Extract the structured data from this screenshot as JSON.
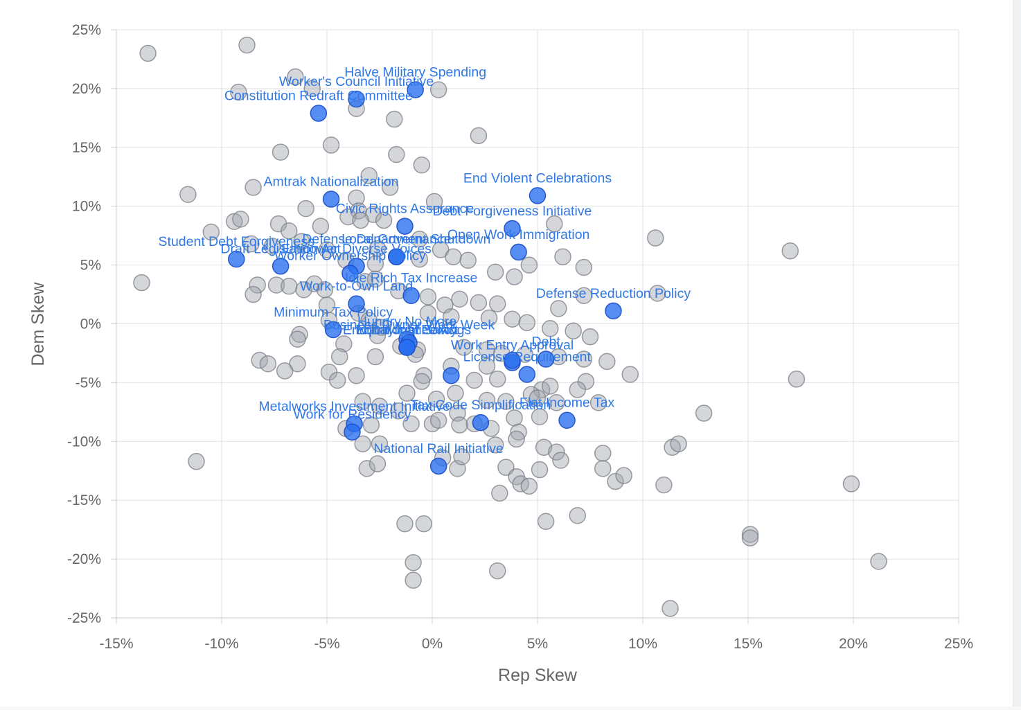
{
  "chart_data": {
    "type": "scatter",
    "xlabel": "Rep Skew",
    "ylabel": "Dem Skew",
    "xlim": [
      -15,
      25
    ],
    "ylim": [
      -25,
      25
    ],
    "x_tick_values": [
      -15,
      -10,
      -5,
      0,
      5,
      10,
      15,
      20,
      25
    ],
    "y_tick_values": [
      25,
      20,
      15,
      10,
      5,
      0,
      -5,
      -10,
      -15,
      -20,
      -25
    ],
    "x_ticks": [
      "-15%",
      "-10%",
      "-5%",
      "0%",
      "5%",
      "10%",
      "15%",
      "20%",
      "25%"
    ],
    "y_ticks": [
      "25%",
      "20%",
      "15%",
      "10%",
      "5%",
      "0%",
      "-5%",
      "-10%",
      "-15%",
      "-20%",
      "-25%"
    ],
    "grid": true,
    "colors": {
      "highlight": "#2f78e6",
      "background_point": "#a0a4ac"
    },
    "highlighted": [
      {
        "label": "Halve Military Spending",
        "x": -0.8,
        "y": 19.9
      },
      {
        "label": "Worker's Council Initiative",
        "x": -3.6,
        "y": 19.1
      },
      {
        "label": "Constitution Redraft Committee",
        "x": -5.4,
        "y": 17.9
      },
      {
        "label": "Amtrak Nationalization",
        "x": -4.8,
        "y": 10.6
      },
      {
        "label": "End Violent Celebrations",
        "x": 5.0,
        "y": 10.9
      },
      {
        "label": "Civic Rights Assurance",
        "x": -1.3,
        "y": 8.3
      },
      {
        "label": "Debt Forgiveness Initiative",
        "x": 3.8,
        "y": 8.1
      },
      {
        "label": "Open Work Immigration",
        "x": 4.1,
        "y": 6.1
      },
      {
        "label": "Defense Department Shutdown",
        "x": -1.7,
        "y": 5.7
      },
      {
        "label": "Student Debt Forgiveness",
        "x": -9.3,
        "y": 5.5
      },
      {
        "label": "Draft Legislation Act",
        "x": -7.2,
        "y": 4.9
      },
      {
        "label": "Empower Diverse Voices",
        "x": -3.6,
        "y": 4.9
      },
      {
        "label": "Local Governance",
        "x": -1.7,
        "y": 5.7
      },
      {
        "label": "Worker Ownership Policy",
        "x": -3.9,
        "y": 4.3
      },
      {
        "label": "Work-to-Own Land",
        "x": -3.6,
        "y": 1.7
      },
      {
        "label": "Defense Reduction Policy",
        "x": 8.6,
        "y": 1.1
      },
      {
        "label": "Idle Rich Tax Increase",
        "x": -1.0,
        "y": 2.4
      },
      {
        "label": "Minimum Tax Policy",
        "x": -4.7,
        "y": -0.5
      },
      {
        "label": "Hungry No More",
        "x": -1.2,
        "y": -1.3
      },
      {
        "label": "Business Owner Work Week",
        "x": -1.1,
        "y": -1.6
      },
      {
        "label": "Equal Justice Act",
        "x": -1.2,
        "y": -2.0
      },
      {
        "label": "Nutritional Policy",
        "x": -1.2,
        "y": -2.0
      },
      {
        "label": "Work Entry Approval",
        "x": 3.8,
        "y": -3.3
      },
      {
        "label": "Debt",
        "x": 5.4,
        "y": -3.0
      },
      {
        "label": "End Daylight Savings",
        "x": -1.2,
        "y": -2.0
      },
      {
        "label": "License Requirement",
        "x": 4.5,
        "y": -4.3
      },
      {
        "label": "Tax Code Simplification",
        "x": 2.3,
        "y": -8.4
      },
      {
        "label": "Metalworks Investment Initiative",
        "x": -3.7,
        "y": -8.5
      },
      {
        "label": "Work for Residency",
        "x": -3.8,
        "y": -9.2
      },
      {
        "label": "Flat Income Tax",
        "x": 6.4,
        "y": -8.2
      },
      {
        "label": "National Rail Initiative",
        "x": 0.3,
        "y": -12.1
      },
      {
        "label": "",
        "x": 0.9,
        "y": -4.4
      },
      {
        "label": "",
        "x": 3.8,
        "y": -3.1
      }
    ],
    "points": [
      [
        -13.5,
        23.0
      ],
      [
        -8.8,
        23.7
      ],
      [
        -9.2,
        19.7
      ],
      [
        -6.5,
        21.0
      ],
      [
        -5.7,
        20.0
      ],
      [
        0.3,
        19.9
      ],
      [
        -3.6,
        18.3
      ],
      [
        -1.8,
        17.4
      ],
      [
        2.2,
        16.0
      ],
      [
        -7.2,
        14.6
      ],
      [
        -4.8,
        15.2
      ],
      [
        -1.7,
        14.4
      ],
      [
        -0.5,
        13.5
      ],
      [
        -11.6,
        11.0
      ],
      [
        -8.5,
        11.6
      ],
      [
        -3.0,
        12.6
      ],
      [
        -2.0,
        11.6
      ],
      [
        -3.6,
        10.7
      ],
      [
        0.1,
        10.4
      ],
      [
        -6.0,
        9.8
      ],
      [
        -3.5,
        9.6
      ],
      [
        -2.8,
        9.3
      ],
      [
        -9.4,
        8.7
      ],
      [
        -9.1,
        8.9
      ],
      [
        -7.3,
        8.5
      ],
      [
        -5.3,
        8.3
      ],
      [
        -4.0,
        9.1
      ],
      [
        -2.3,
        8.8
      ],
      [
        -10.5,
        7.8
      ],
      [
        -6.8,
        7.9
      ],
      [
        -3.4,
        8.8
      ],
      [
        5.8,
        8.5
      ],
      [
        -8.6,
        6.8
      ],
      [
        -7.6,
        6.6
      ],
      [
        -6.2,
        7.0
      ],
      [
        -5.0,
        6.3
      ],
      [
        -2.6,
        6.4
      ],
      [
        -0.6,
        7.2
      ],
      [
        0.4,
        6.3
      ],
      [
        1.0,
        5.7
      ],
      [
        1.7,
        5.4
      ],
      [
        -4.1,
        5.4
      ],
      [
        -2.7,
        5.1
      ],
      [
        -0.6,
        5.5
      ],
      [
        3.0,
        4.4
      ],
      [
        3.9,
        4.0
      ],
      [
        4.6,
        5.0
      ],
      [
        6.2,
        5.7
      ],
      [
        7.2,
        4.8
      ],
      [
        10.6,
        7.3
      ],
      [
        17.0,
        6.2
      ],
      [
        -13.8,
        3.5
      ],
      [
        -8.3,
        3.3
      ],
      [
        -7.4,
        3.3
      ],
      [
        -6.8,
        3.2
      ],
      [
        -5.6,
        3.4
      ],
      [
        -5.1,
        2.9
      ],
      [
        -3.2,
        3.6
      ],
      [
        -2.7,
        3.8
      ],
      [
        -1.6,
        2.8
      ],
      [
        -0.2,
        2.3
      ],
      [
        0.6,
        1.6
      ],
      [
        1.3,
        2.1
      ],
      [
        2.2,
        1.8
      ],
      [
        3.1,
        1.7
      ],
      [
        6.0,
        1.3
      ],
      [
        7.2,
        2.4
      ],
      [
        10.7,
        2.6
      ],
      [
        -8.5,
        2.5
      ],
      [
        -6.1,
        2.9
      ],
      [
        -4.9,
        0.3
      ],
      [
        -5.0,
        1.6
      ],
      [
        -3.5,
        0.9
      ],
      [
        -3.0,
        0.3
      ],
      [
        -2.4,
        -0.3
      ],
      [
        -0.2,
        0.9
      ],
      [
        0.9,
        0.6
      ],
      [
        2.7,
        0.5
      ],
      [
        3.8,
        0.4
      ],
      [
        4.5,
        0.1
      ],
      [
        5.6,
        -0.4
      ],
      [
        6.7,
        -0.6
      ],
      [
        7.5,
        -1.1
      ],
      [
        -6.3,
        -0.9
      ],
      [
        -6.4,
        -1.3
      ],
      [
        -4.2,
        -1.7
      ],
      [
        -2.6,
        -1.0
      ],
      [
        -1.5,
        -1.9
      ],
      [
        -0.7,
        -2.2
      ],
      [
        1.5,
        -2.0
      ],
      [
        2.6,
        -2.2
      ],
      [
        3.3,
        -2.5
      ],
      [
        4.4,
        -2.6
      ],
      [
        6.0,
        -2.8
      ],
      [
        7.2,
        -3.0
      ],
      [
        8.3,
        -3.2
      ],
      [
        -8.2,
        -3.1
      ],
      [
        -7.8,
        -3.4
      ],
      [
        -6.4,
        -3.4
      ],
      [
        -4.4,
        -2.8
      ],
      [
        -2.7,
        -2.8
      ],
      [
        -0.8,
        -2.6
      ],
      [
        0.9,
        -3.6
      ],
      [
        2.6,
        -3.6
      ],
      [
        -7.0,
        -4.0
      ],
      [
        -4.9,
        -4.1
      ],
      [
        -3.6,
        -4.4
      ],
      [
        -4.5,
        -4.8
      ],
      [
        -0.4,
        -4.4
      ],
      [
        -0.5,
        -4.9
      ],
      [
        2.0,
        -4.8
      ],
      [
        3.1,
        -4.7
      ],
      [
        5.2,
        -5.6
      ],
      [
        5.6,
        -5.3
      ],
      [
        7.3,
        -4.9
      ],
      [
        9.4,
        -4.3
      ],
      [
        17.3,
        -4.7
      ],
      [
        -1.2,
        -5.9
      ],
      [
        0.2,
        -6.4
      ],
      [
        1.1,
        -5.9
      ],
      [
        2.6,
        -6.5
      ],
      [
        3.5,
        -6.6
      ],
      [
        4.7,
        -6.0
      ],
      [
        5.0,
        -6.3
      ],
      [
        5.9,
        -6.7
      ],
      [
        6.9,
        -5.6
      ],
      [
        7.9,
        -6.7
      ],
      [
        12.9,
        -7.6
      ],
      [
        -3.3,
        -6.6
      ],
      [
        -2.5,
        -7.0
      ],
      [
        -1.6,
        -7.4
      ],
      [
        -1.0,
        -8.5
      ],
      [
        0.0,
        -8.5
      ],
      [
        0.3,
        -8.2
      ],
      [
        1.2,
        -7.6
      ],
      [
        1.3,
        -8.6
      ],
      [
        2.0,
        -8.5
      ],
      [
        2.8,
        -8.9
      ],
      [
        3.9,
        -8.0
      ],
      [
        4.1,
        -9.2
      ],
      [
        5.1,
        -7.9
      ],
      [
        -4.1,
        -8.9
      ],
      [
        -2.9,
        -8.6
      ],
      [
        -3.3,
        -10.2
      ],
      [
        -2.5,
        -10.2
      ],
      [
        3.0,
        -10.3
      ],
      [
        4.0,
        -9.8
      ],
      [
        5.3,
        -10.5
      ],
      [
        5.9,
        -10.9
      ],
      [
        6.1,
        -11.6
      ],
      [
        8.1,
        -11.0
      ],
      [
        11.4,
        -10.5
      ],
      [
        11.7,
        -10.2
      ],
      [
        -11.2,
        -11.7
      ],
      [
        0.5,
        -11.4
      ],
      [
        1.2,
        -12.3
      ],
      [
        1.4,
        -11.3
      ],
      [
        -3.1,
        -12.3
      ],
      [
        -2.6,
        -11.9
      ],
      [
        3.5,
        -12.2
      ],
      [
        4.0,
        -13.0
      ],
      [
        4.2,
        -13.6
      ],
      [
        4.6,
        -13.8
      ],
      [
        5.1,
        -12.4
      ],
      [
        8.1,
        -12.3
      ],
      [
        8.7,
        -13.4
      ],
      [
        9.1,
        -12.9
      ],
      [
        11.0,
        -13.7
      ],
      [
        3.2,
        -14.4
      ],
      [
        19.9,
        -13.6
      ],
      [
        6.9,
        -16.3
      ],
      [
        5.4,
        -16.8
      ],
      [
        -1.3,
        -17.0
      ],
      [
        -0.4,
        -17.0
      ],
      [
        15.1,
        -17.9
      ],
      [
        15.1,
        -18.2
      ],
      [
        -0.9,
        -20.3
      ],
      [
        21.2,
        -20.2
      ],
      [
        3.1,
        -21.0
      ],
      [
        -0.9,
        -21.8
      ],
      [
        11.3,
        -24.2
      ]
    ]
  }
}
